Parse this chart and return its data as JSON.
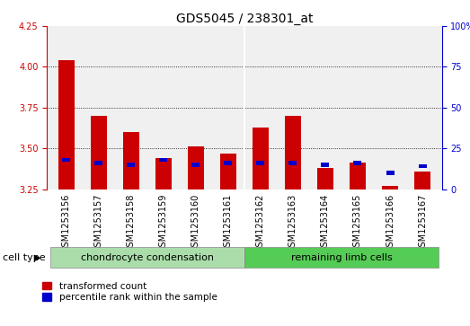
{
  "title": "GDS5045 / 238301_at",
  "samples": [
    "GSM1253156",
    "GSM1253157",
    "GSM1253158",
    "GSM1253159",
    "GSM1253160",
    "GSM1253161",
    "GSM1253162",
    "GSM1253163",
    "GSM1253164",
    "GSM1253165",
    "GSM1253166",
    "GSM1253167"
  ],
  "red_values": [
    4.04,
    3.7,
    3.6,
    3.44,
    3.51,
    3.47,
    3.63,
    3.7,
    3.38,
    3.41,
    3.27,
    3.36
  ],
  "blue_values_pct": [
    18,
    16,
    15,
    18,
    15,
    16,
    16,
    16,
    15,
    16,
    10,
    14
  ],
  "y_min": 3.25,
  "y_max": 4.25,
  "y_ticks": [
    3.25,
    3.5,
    3.75,
    4.0,
    4.25
  ],
  "right_y_ticks": [
    0,
    25,
    50,
    75,
    100
  ],
  "group1_label": "chondrocyte condensation",
  "group2_label": "remaining limb cells",
  "group1_count": 6,
  "group2_count": 6,
  "cell_type_label": "cell type",
  "legend_red": "transformed count",
  "legend_blue": "percentile rank within the sample",
  "bar_width": 0.5,
  "red_color": "#cc0000",
  "blue_color": "#0000cc",
  "group_bg1": "#aaddaa",
  "group_bg2": "#55cc55",
  "xtick_bg": "#cccccc",
  "plot_bg": "#f0f0f0",
  "title_fontsize": 10,
  "tick_fontsize": 7,
  "label_fontsize": 8
}
